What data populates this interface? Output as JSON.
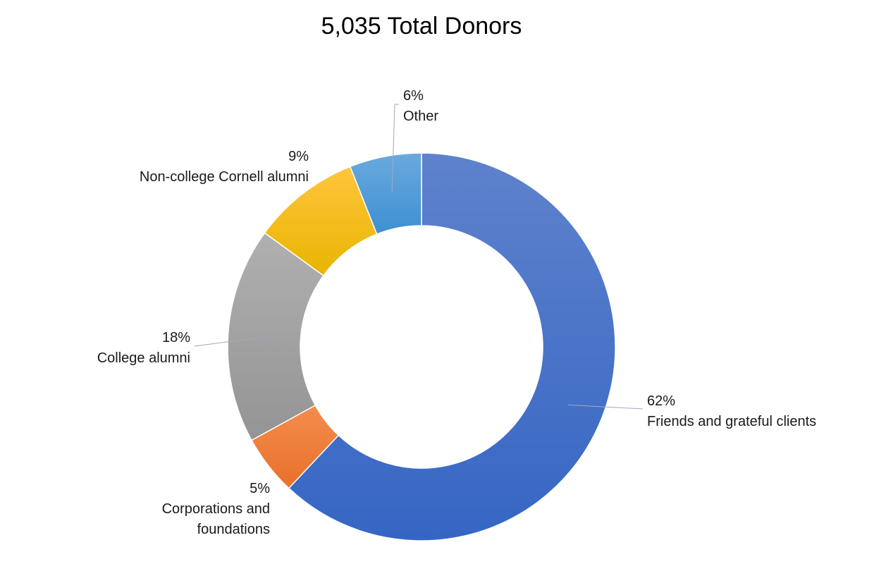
{
  "chart_data": {
    "type": "pie",
    "title": "5,035 Total Donors",
    "donut": true,
    "slices": [
      {
        "label": "Friends and grateful clients",
        "value": 62,
        "display": "62%",
        "color": "#3566c4",
        "color_light": "#5f82cc"
      },
      {
        "label": "Corporations and foundations",
        "value": 5,
        "display": "5%",
        "color": "#e8702a",
        "color_light": "#f48d4e"
      },
      {
        "label": "College alumni",
        "value": 18,
        "display": "18%",
        "color": "#949494",
        "color_light": "#b0b0b0"
      },
      {
        "label": "Non-college Cornell alumni",
        "value": 9,
        "display": "9%",
        "color": "#e8b500",
        "color_light": "#ffc53d"
      },
      {
        "label": "Other",
        "value": 6,
        "display": "6%",
        "color": "#3e8fd2",
        "color_light": "#6aaade"
      }
    ]
  }
}
